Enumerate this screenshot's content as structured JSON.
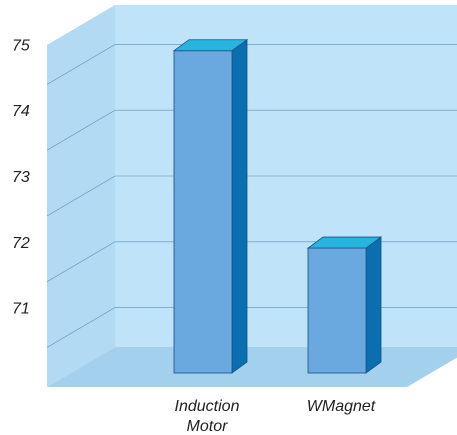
{
  "chart_data": {
    "type": "bar",
    "style": "3d",
    "categories": [
      "Induction Motor",
      "WMagnet"
    ],
    "category_lines": [
      [
        "Induction",
        "Motor"
      ],
      [
        "WMagnet"
      ]
    ],
    "values": [
      75.3,
      72.3
    ],
    "ylim": [
      70.4,
      75.6
    ],
    "yticks": [
      "71",
      "72",
      "73",
      "74",
      "75"
    ],
    "grid": true,
    "title": "",
    "xlabel": "",
    "ylabel": "",
    "colors": {
      "back_wall": "#bfe3f8",
      "side_wall": "#b2daf2",
      "floor": "#a3d0ec",
      "grid_line": "#5f8fb3",
      "bar_front": "#6aa8e0",
      "bar_top": "#27b5e0",
      "bar_side": "#0a6fb0",
      "bar_edge": "#1a4f80"
    }
  }
}
